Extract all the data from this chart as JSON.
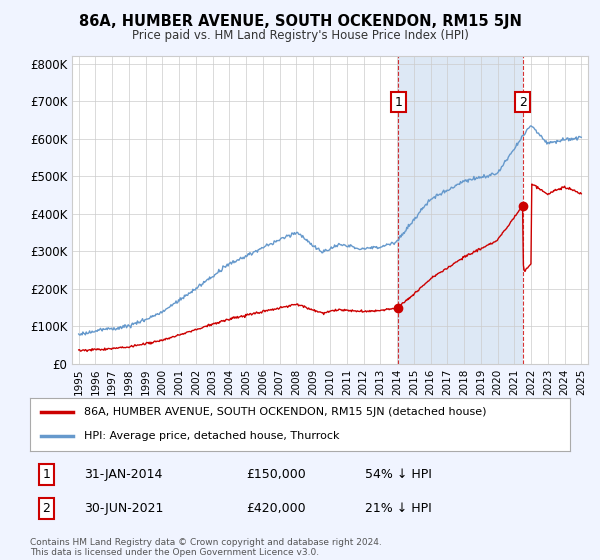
{
  "title": "86A, HUMBER AVENUE, SOUTH OCKENDON, RM15 5JN",
  "subtitle": "Price paid vs. HM Land Registry's House Price Index (HPI)",
  "ylim": [
    0,
    820000
  ],
  "yticks": [
    0,
    100000,
    200000,
    300000,
    400000,
    500000,
    600000,
    700000,
    800000
  ],
  "ytick_labels": [
    "£0",
    "£100K",
    "£200K",
    "£300K",
    "£400K",
    "£500K",
    "£600K",
    "£700K",
    "£800K"
  ],
  "hpi_color": "#6699cc",
  "price_color": "#cc0000",
  "bg_color": "#f0f4ff",
  "plot_bg": "#ffffff",
  "shade_color": "#dde8f5",
  "grid_color": "#cccccc",
  "sale1_x": 2014.08,
  "sale1_y": 150000,
  "sale2_x": 2021.5,
  "sale2_y": 420000,
  "legend_line1": "86A, HUMBER AVENUE, SOUTH OCKENDON, RM15 5JN (detached house)",
  "legend_line2": "HPI: Average price, detached house, Thurrock",
  "note1_label": "1",
  "note1_date": "31-JAN-2014",
  "note1_price": "£150,000",
  "note1_pct": "54% ↓ HPI",
  "note2_label": "2",
  "note2_date": "30-JUN-2021",
  "note2_price": "£420,000",
  "note2_pct": "21% ↓ HPI",
  "footnote": "Contains HM Land Registry data © Crown copyright and database right 2024.\nThis data is licensed under the Open Government Licence v3.0.",
  "xlim_left": 1994.6,
  "xlim_right": 2025.4
}
